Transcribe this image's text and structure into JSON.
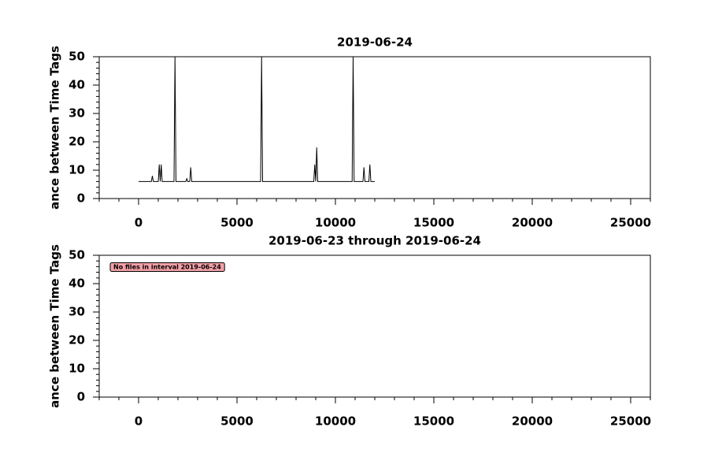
{
  "chart_data": [
    {
      "type": "line",
      "title": "2019-06-24",
      "y_label": "ance between Time Tags",
      "x": [
        0,
        650,
        700,
        750,
        1000,
        1050,
        1100,
        1150,
        1200,
        1800,
        1850,
        1900,
        2400,
        2450,
        2500,
        2600,
        2650,
        2700,
        6200,
        6250,
        6300,
        8900,
        8950,
        9000,
        9050,
        9100,
        10850,
        10900,
        10950,
        11400,
        11450,
        11500,
        11700,
        11750,
        11800,
        12000
      ],
      "series": [
        {
          "color": "#000000",
          "values": [
            6,
            6,
            8,
            6,
            6,
            12,
            6,
            12,
            6,
            6,
            50,
            6,
            6,
            7,
            6,
            6,
            11,
            6,
            6,
            50,
            6,
            6,
            12,
            6,
            18,
            6,
            6,
            50,
            6,
            6,
            11,
            6,
            6,
            12,
            6,
            6
          ]
        }
      ],
      "xlim": [
        -2000,
        26000
      ],
      "ylim": [
        0,
        50
      ],
      "xticks": [
        0,
        5000,
        10000,
        15000,
        20000,
        25000
      ],
      "yticks": [
        0,
        10,
        20,
        30,
        40,
        50
      ]
    },
    {
      "type": "line",
      "title": "2019-06-23 through 2019-06-24",
      "y_label": "ance between Time Tags",
      "annotation": "No files in interval 2019-06-24",
      "xlim": [
        -2000,
        26000
      ],
      "ylim": [
        0,
        50
      ],
      "xticks": [
        0,
        5000,
        10000,
        15000,
        20000,
        25000
      ],
      "yticks": [
        0,
        10,
        20,
        30,
        40,
        50
      ]
    }
  ]
}
